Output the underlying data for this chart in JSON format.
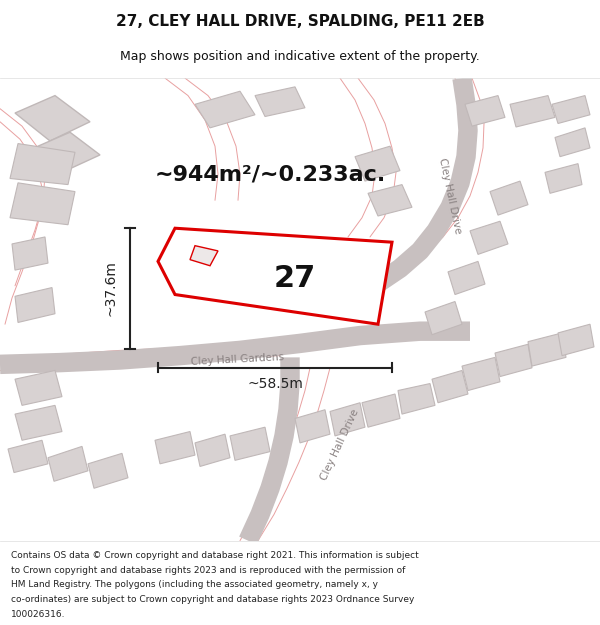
{
  "title_line1": "27, CLEY HALL DRIVE, SPALDING, PE11 2EB",
  "title_line2": "Map shows position and indicative extent of the property.",
  "area_text": "~944m²/~0.233ac.",
  "label_27": "27",
  "dim_width": "~58.5m",
  "dim_height": "~37.6m",
  "road_label1": "Cley Hall Drive",
  "road_label2": "Cley Hall Gardens",
  "road_label3": "Cley Hall Drive",
  "copyright_lines": [
    "Contains OS data © Crown copyright and database right 2021. This information is subject",
    "to Crown copyright and database rights 2023 and is reproduced with the permission of",
    "HM Land Registry. The polygons (including the associated geometry, namely x, y",
    "co-ordinates) are subject to Crown copyright and database rights 2023 Ordnance Survey",
    "100026316."
  ],
  "map_bg": "#f9f6f6",
  "building_fill": "#d8d2d2",
  "building_edge": "#c0b8b8",
  "plot_fill": "#ffffff",
  "plot_edge": "#dd0000",
  "inner_fill": "#ede8e8",
  "inner_edge": "#dd0000",
  "dim_color": "#222222",
  "text_color": "#111111",
  "pink_color": "#e8a0a0",
  "road_gray": "#c8c0c0",
  "road_label_color": "#888080"
}
